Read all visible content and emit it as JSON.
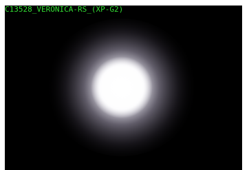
{
  "caption": "C13528_VERONICA-RS_(XP-G2)"
}
